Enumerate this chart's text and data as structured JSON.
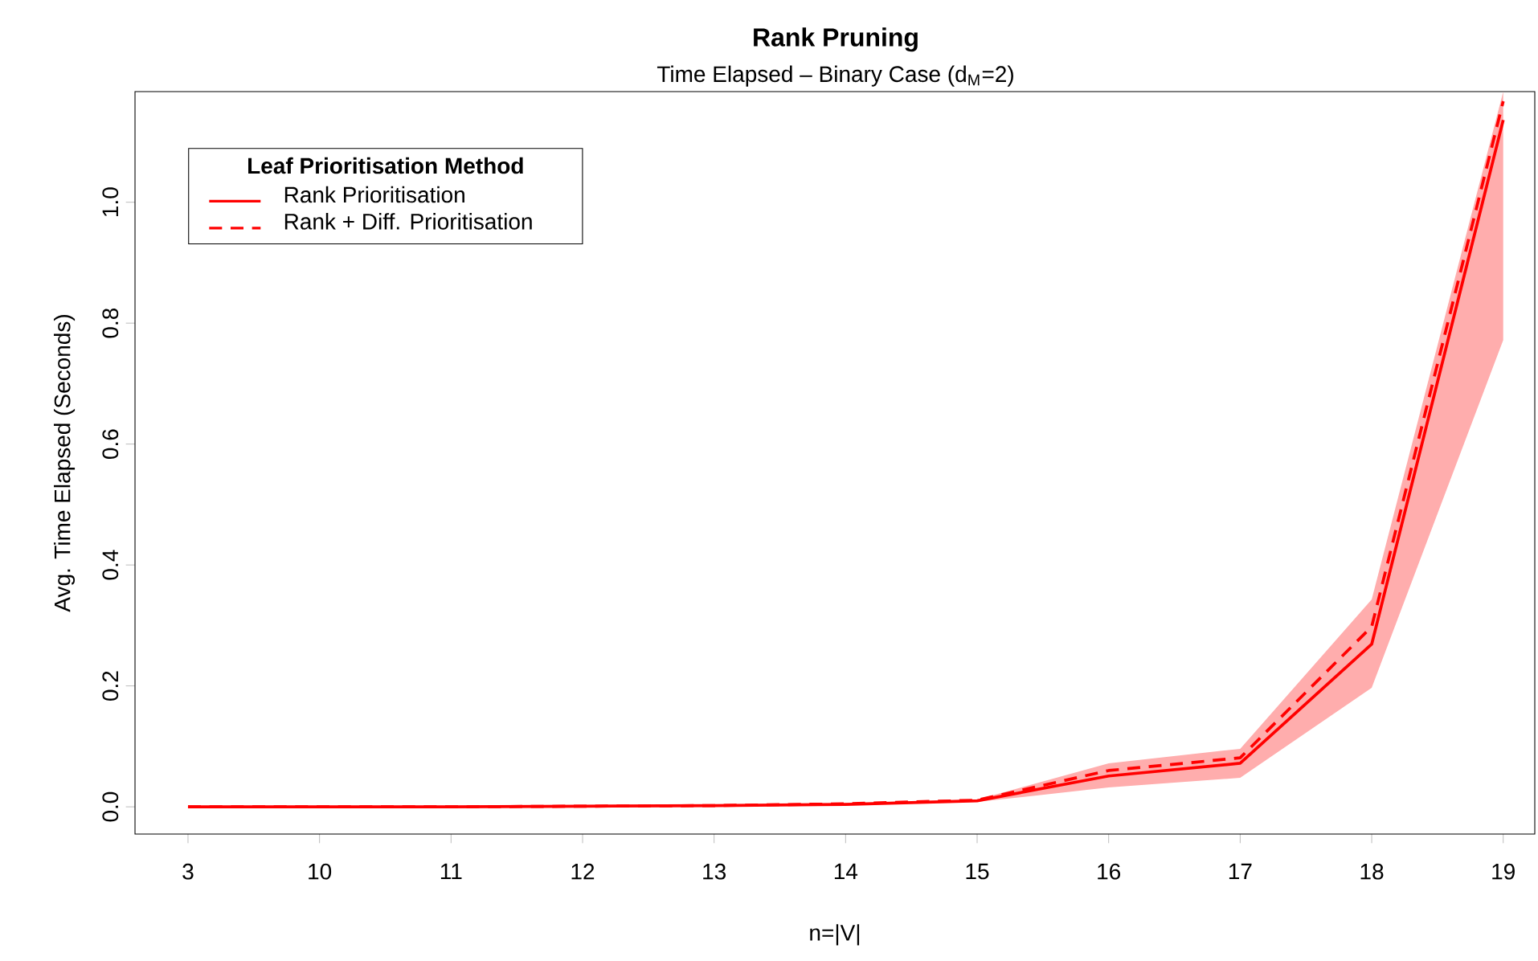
{
  "chart_data": {
    "type": "line",
    "title": "Rank Pruning",
    "subtitle": "Time Elapsed – Binary Case (d$_{M}$=2)",
    "xlabel": "n=|V|",
    "ylabel": "Avg. Time Elapsed (Seconds)",
    "legend_title": "Leaf Prioritisation Method",
    "categories": [
      "3",
      "10",
      "11",
      "12",
      "13",
      "14",
      "15",
      "16",
      "17",
      "18",
      "19"
    ],
    "series": [
      {
        "name": "Rank Prioritisation",
        "color": "#ff0000",
        "line_style": "solid",
        "values": [
          0,
          0,
          0,
          0.001,
          0.002,
          0.004,
          0.01,
          0.051,
          0.072,
          0.269,
          1.136
        ],
        "lower": [
          0,
          0,
          0,
          0.001,
          0.002,
          0.003,
          0.008,
          0.032,
          0.048,
          0.197,
          0.772
        ],
        "upper": [
          0,
          0,
          0.001,
          0.002,
          0.003,
          0.006,
          0.012,
          0.072,
          0.096,
          0.343,
          1.183
        ]
      },
      {
        "name": "Rank + Diff. Prioritisation",
        "color": "#ff0000",
        "line_style": "dashed",
        "values": [
          0,
          0,
          0,
          0.001,
          0.002,
          0.005,
          0.011,
          0.06,
          0.081,
          0.298,
          1.167
        ]
      }
    ],
    "ylim": [
      -0.045,
      1.183
    ],
    "yticks": [
      {
        "value": 0,
        "label": "0.0"
      },
      0.2,
      0.4,
      0.6,
      0.8,
      {
        "value": 1,
        "label": "1.0"
      }
    ],
    "grid": false,
    "legend": "top left",
    "marker": "none"
  }
}
